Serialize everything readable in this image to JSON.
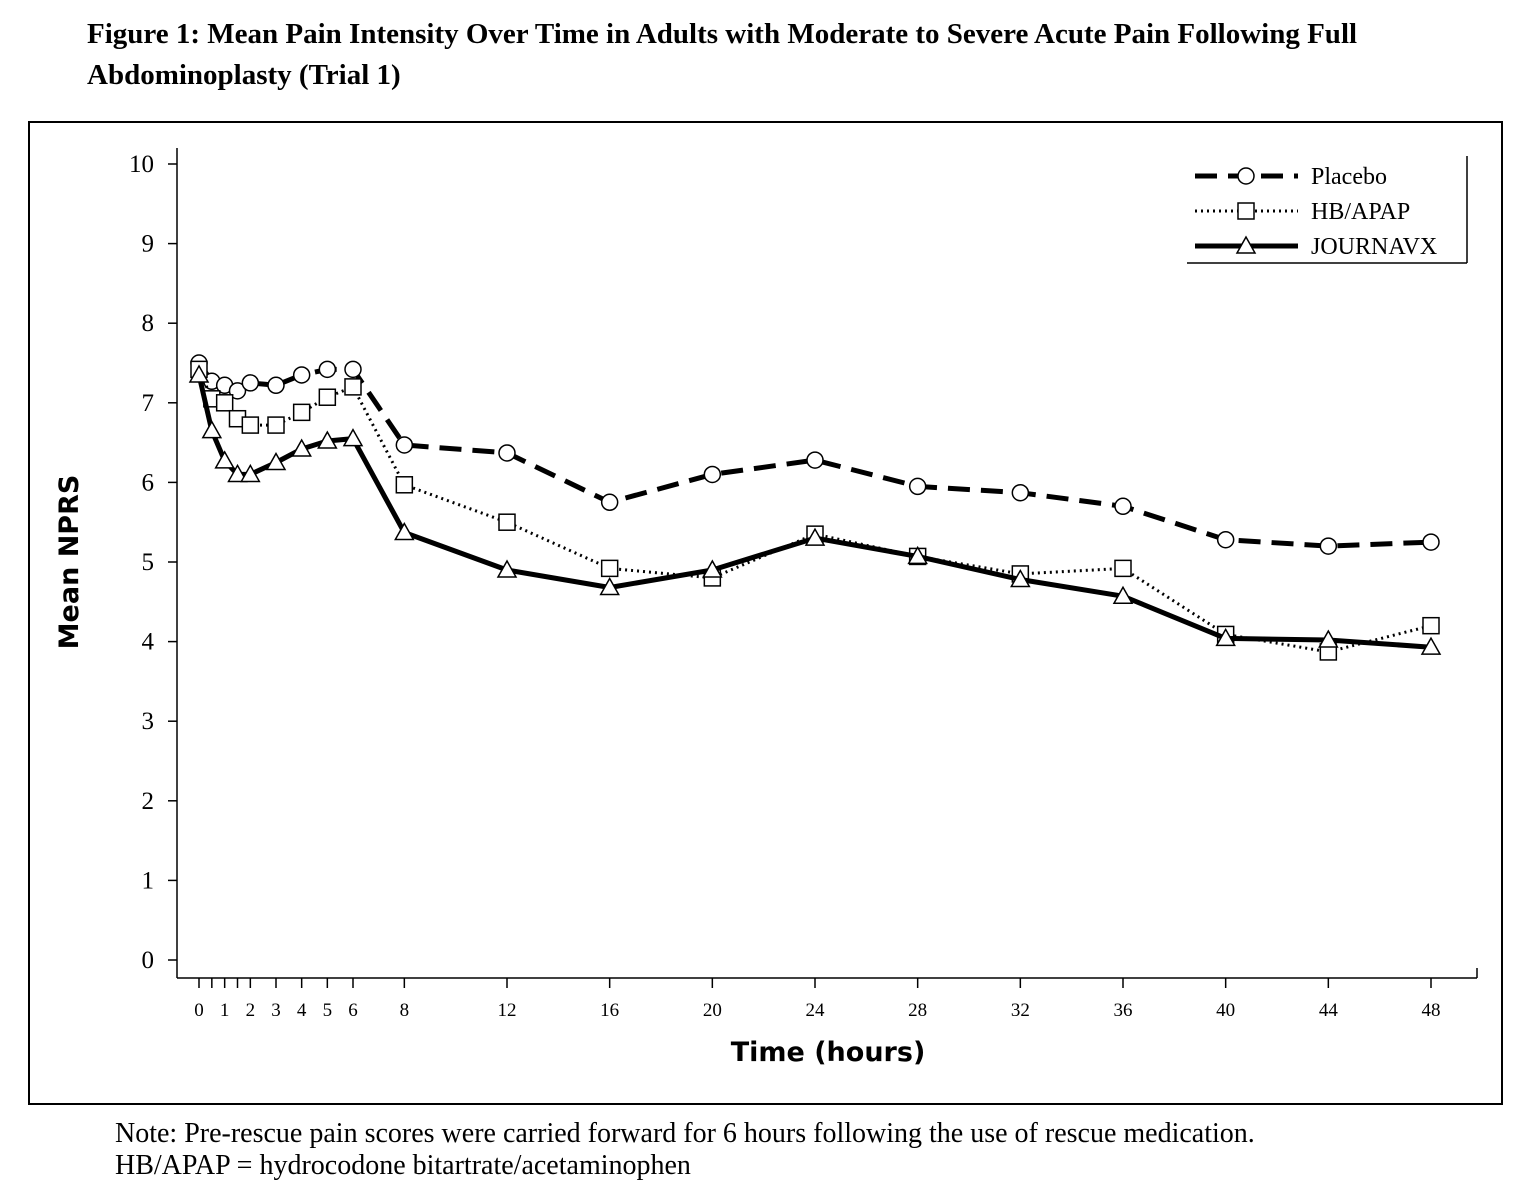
{
  "figure": {
    "title": "Figure 1: Mean Pain Intensity Over Time in Adults with Moderate to Severe Acute Pain Following Full Abdominoplasty (Trial 1)",
    "note_line1": "Note: Pre-rescue pain scores were carried forward for 6 hours following the use of rescue medication.",
    "note_line2": "HB/APAP = hydrocodone bitartrate/acetaminophen"
  },
  "chart_data": {
    "type": "line",
    "title": "",
    "xlabel": "Time (hours)",
    "ylabel": "Mean NPRS",
    "ylim": [
      0,
      10
    ],
    "xlim": [
      -0.3,
      48.5
    ],
    "yticks": [
      0,
      1,
      2,
      3,
      4,
      5,
      6,
      7,
      8,
      9,
      10
    ],
    "xticks": [
      0,
      1,
      2,
      3,
      4,
      5,
      6,
      8,
      12,
      16,
      20,
      24,
      28,
      32,
      36,
      40,
      44,
      48
    ],
    "minor_xticks": [
      0.5,
      1.5
    ],
    "grid": false,
    "legend_position": "top-right",
    "series": [
      {
        "name": "Placebo",
        "line_style": "dashed",
        "marker": "circle",
        "color": "#000000",
        "x": [
          0,
          0.5,
          1,
          1.5,
          2,
          3,
          4,
          5,
          6,
          8,
          12,
          16,
          20,
          24,
          28,
          32,
          36,
          40,
          44,
          48
        ],
        "values": [
          7.5,
          7.27,
          7.22,
          7.15,
          7.25,
          7.22,
          7.35,
          7.42,
          7.42,
          6.47,
          6.37,
          5.75,
          6.1,
          6.28,
          5.95,
          5.87,
          5.7,
          5.28,
          5.2,
          5.25
        ]
      },
      {
        "name": "HB/APAP",
        "line_style": "dotted",
        "marker": "square",
        "color": "#000000",
        "x": [
          0,
          0.5,
          1,
          1.5,
          2,
          3,
          4,
          5,
          6,
          8,
          12,
          16,
          20,
          24,
          28,
          32,
          36,
          40,
          44,
          48
        ],
        "values": [
          7.42,
          7.05,
          7.0,
          6.8,
          6.72,
          6.72,
          6.88,
          7.07,
          7.2,
          5.97,
          5.5,
          4.92,
          4.8,
          5.35,
          5.07,
          4.85,
          4.92,
          4.09,
          3.87,
          4.2
        ]
      },
      {
        "name": "JOURNAVX",
        "line_style": "solid",
        "marker": "triangle",
        "color": "#000000",
        "x": [
          0,
          0.5,
          1,
          1.5,
          2,
          3,
          4,
          5,
          6,
          8,
          12,
          16,
          20,
          24,
          28,
          32,
          36,
          40,
          44,
          48
        ],
        "values": [
          7.35,
          6.65,
          6.27,
          6.1,
          6.1,
          6.25,
          6.42,
          6.52,
          6.55,
          5.37,
          4.9,
          4.68,
          4.9,
          5.3,
          5.07,
          4.78,
          4.57,
          4.04,
          4.02,
          3.93
        ]
      }
    ]
  }
}
